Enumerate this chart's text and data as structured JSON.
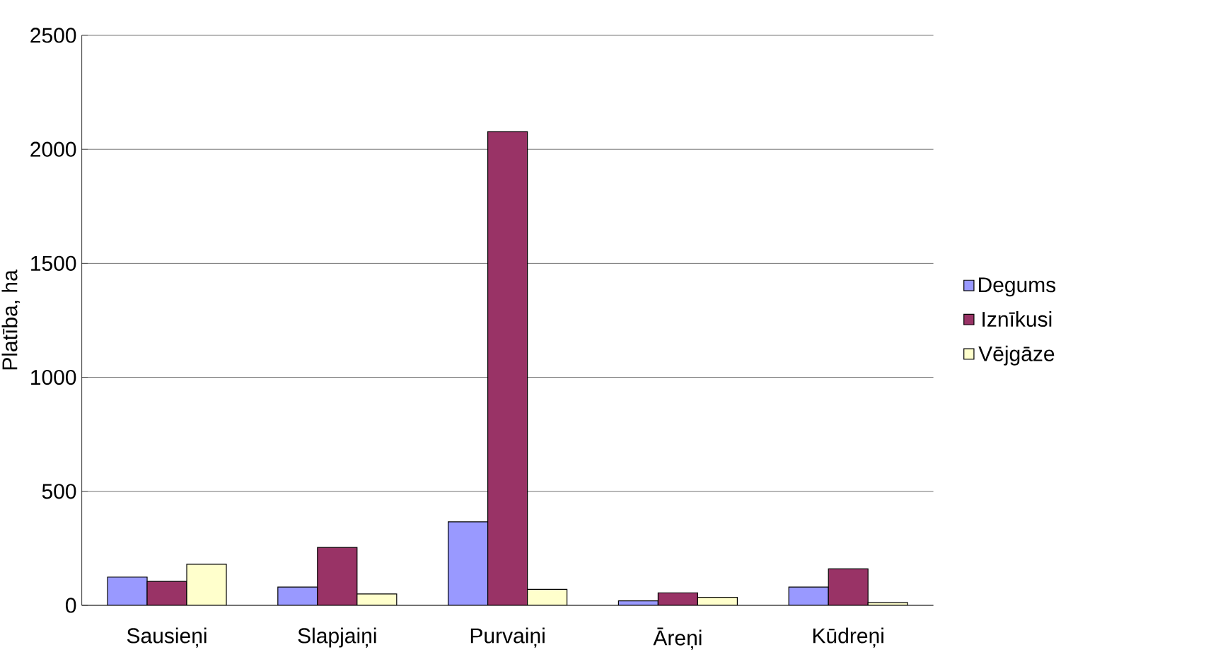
{
  "chart_data": {
    "type": "bar",
    "ylabel": "Platība, ha",
    "categories": [
      "Sausieņi",
      "Slapjaiņi",
      "Purvaiņi",
      "Āreņi",
      "Kūdreņi"
    ],
    "series": [
      {
        "name": "Degums",
        "color": "#9999ff",
        "values": [
          124,
          80,
          366,
          20,
          80
        ]
      },
      {
        "name": "Iznīkusi",
        "color": "#993366",
        "values": [
          105,
          254,
          2078,
          55,
          160
        ]
      },
      {
        "name": "Vējgāze",
        "color": "#ffffcc",
        "values": [
          180,
          50,
          70,
          35,
          12
        ]
      }
    ],
    "ylim": [
      0,
      2500
    ],
    "yticks": [
      0,
      500,
      1000,
      1500,
      2000,
      2500
    ],
    "grid": "y",
    "legend": "right"
  }
}
